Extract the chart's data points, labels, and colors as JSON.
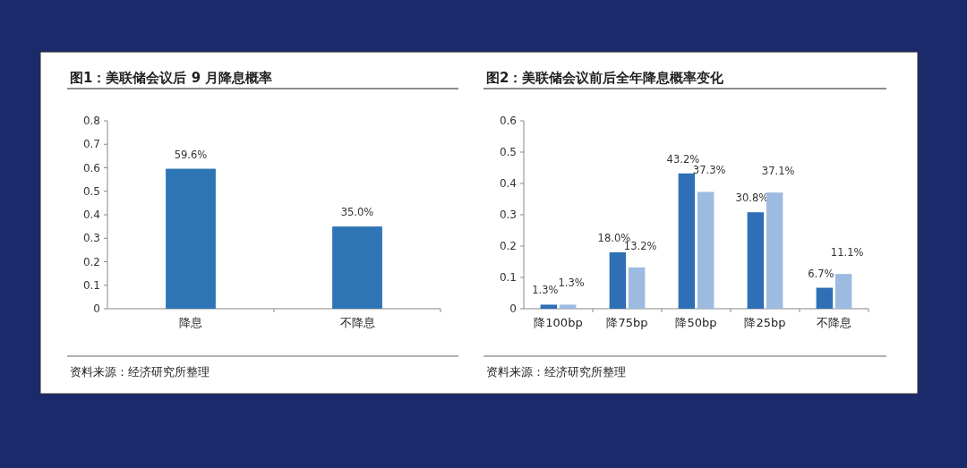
{
  "chart_data": [
    {
      "type": "bar",
      "title": "图1：美联储会议后 9 月降息概率",
      "categories": [
        "降息",
        "不降息"
      ],
      "series": [
        {
          "color": "#2e75b6",
          "values": [
            0.596,
            0.35
          ],
          "value_labels": [
            "59.6%",
            "35.0%"
          ]
        }
      ],
      "ylim": [
        0,
        0.8
      ],
      "yticks": [
        0,
        0.1,
        0.2,
        0.3,
        0.4,
        0.5,
        0.6,
        0.7,
        0.8
      ],
      "annotations": [
        "资料来源：经济研究所整理"
      ]
    },
    {
      "type": "bar",
      "title": "图2：美联储会议前后全年降息概率变化",
      "categories": [
        "降100bp",
        "降75bp",
        "降50bp",
        "降25bp",
        "不降息"
      ],
      "series": [
        {
          "color": "#2e6fb5",
          "values": [
            0.013,
            0.18,
            0.432,
            0.308,
            0.067
          ],
          "value_labels": [
            "1.3%",
            "18.0%",
            "43.2%",
            "30.8%",
            "6.7%"
          ]
        },
        {
          "color": "#9dbbe0",
          "values": [
            0.013,
            0.132,
            0.373,
            0.371,
            0.111
          ],
          "value_labels": [
            "1.3%",
            "13.2%",
            "37.3%",
            "37.1%",
            "11.1%"
          ]
        }
      ],
      "ylim": [
        0,
        0.6
      ],
      "yticks": [
        0,
        0.1,
        0.2,
        0.3,
        0.4,
        0.5,
        0.6
      ],
      "annotations": [
        "资料来源：经济研究所整理"
      ]
    }
  ]
}
